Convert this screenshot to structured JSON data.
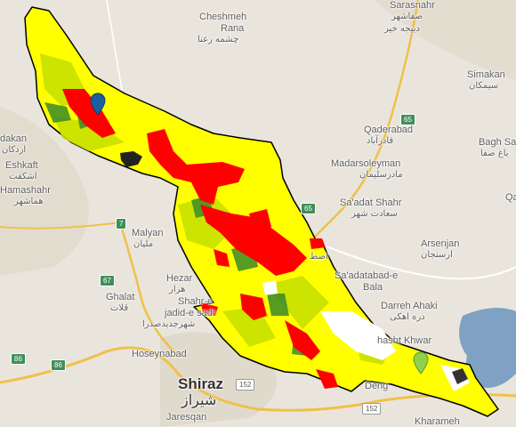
{
  "map": {
    "labels": [
      {
        "text": "Sarasnahr",
        "kind": "en"
      },
      {
        "text": "صفاشهر",
        "kind": "fa"
      },
      {
        "text": "دبیجه خیر",
        "kind": "fa"
      },
      {
        "text": "Cheshmeh",
        "kind": "en"
      },
      {
        "text": "Rana",
        "kind": "en"
      },
      {
        "text": "چشمه رعنا",
        "kind": "fa"
      },
      {
        "text": "Simakan",
        "kind": "en"
      },
      {
        "text": "سیمکان",
        "kind": "fa"
      },
      {
        "text": "Qaderabad",
        "kind": "en"
      },
      {
        "text": "قادرآباد",
        "kind": "fa"
      },
      {
        "text": "Bagh Sa",
        "kind": "en"
      },
      {
        "text": "باغ صفا",
        "kind": "fa"
      },
      {
        "text": "dakan",
        "kind": "en"
      },
      {
        "text": "اردکان",
        "kind": "fa"
      },
      {
        "text": "Eshkaft",
        "kind": "en"
      },
      {
        "text": "اشکفت",
        "kind": "fa"
      },
      {
        "text": "Hamashahr",
        "kind": "en"
      },
      {
        "text": "هماشهر",
        "kind": "fa"
      },
      {
        "text": "Madarsoleyman",
        "kind": "en"
      },
      {
        "text": "مادرسلیمان",
        "kind": "fa"
      },
      {
        "text": "Sa'adat Shahr",
        "kind": "en"
      },
      {
        "text": "سعادت شهر",
        "kind": "fa"
      },
      {
        "text": "Malyan",
        "kind": "en"
      },
      {
        "text": "ملیان",
        "kind": "fa"
      },
      {
        "text": "Arsenjan",
        "kind": "en"
      },
      {
        "text": "ارسنجان",
        "kind": "fa"
      },
      {
        "text": "Sa'adatabad-e",
        "kind": "en"
      },
      {
        "text": "Bala",
        "kind": "en"
      },
      {
        "text": "Hezar",
        "kind": "en"
      },
      {
        "text": "هزار",
        "kind": "fa"
      },
      {
        "text": "Ghalat",
        "kind": "en"
      },
      {
        "text": "قلات",
        "kind": "fa"
      },
      {
        "text": "Shahr-e",
        "kind": "en"
      },
      {
        "text": "jadid-e sadr",
        "kind": "en"
      },
      {
        "text": "شهرجدیدصدرا",
        "kind": "fa"
      },
      {
        "text": "Darreh Ahaki",
        "kind": "en"
      },
      {
        "text": "دره اهکی",
        "kind": "fa"
      },
      {
        "text": "Hoseynabad",
        "kind": "en"
      },
      {
        "text": "hasht Khwar",
        "kind": "en"
      },
      {
        "text": "Shiraz",
        "kind": "city"
      },
      {
        "text": "شیراز",
        "kind": "city-fa"
      },
      {
        "text": "Deng",
        "kind": "en"
      },
      {
        "text": "Jaresqan",
        "kind": "en"
      },
      {
        "text": "Kharameh",
        "kind": "en"
      },
      {
        "text": "Qa",
        "kind": "en"
      },
      {
        "text": "اصط",
        "kind": "fa"
      }
    ],
    "road_shields": [
      {
        "text": "65",
        "style": "green"
      },
      {
        "text": "65",
        "style": "green"
      },
      {
        "text": "7",
        "style": "green"
      },
      {
        "text": "67",
        "style": "green"
      },
      {
        "text": "86",
        "style": "green"
      },
      {
        "text": "86",
        "style": "green"
      },
      {
        "text": "152",
        "style": "white"
      },
      {
        "text": "152",
        "style": "white"
      }
    ],
    "markers": [
      {
        "icon": "map-pin-icon",
        "color": "#1a5fa0"
      },
      {
        "icon": "map-pin-icon",
        "color": "#8fd14f"
      }
    ],
    "overlay_colors": {
      "boundary": "#000000",
      "low": "#ffff00",
      "medium": "#c8e000",
      "high": "#ff0000",
      "forest": "#3a8a2a",
      "water": "#7fa2c4",
      "no_data": "#ffffff"
    }
  }
}
